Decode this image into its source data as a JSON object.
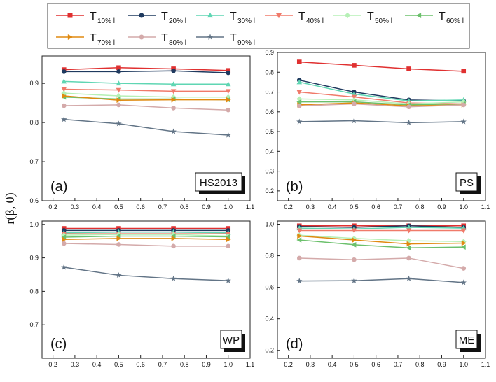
{
  "chart_data": {
    "type": "line",
    "ylabel": "r(β, 0)",
    "xticks": [
      "0.2",
      "0.3",
      "0.4",
      "0.5",
      "0.6",
      "0.7",
      "0.8",
      "0.9",
      "1.0",
      "1.1"
    ],
    "legend": [
      {
        "key": "t10",
        "main": "T",
        "sub": "10% l",
        "color": "#e03030",
        "marker": "square"
      },
      {
        "key": "t20",
        "main": "T",
        "sub": "20% l",
        "color": "#1f3a5f",
        "marker": "circle"
      },
      {
        "key": "t30",
        "main": "T",
        "sub": "30% l",
        "color": "#5fd6b3",
        "marker": "triangle-up"
      },
      {
        "key": "t40",
        "main": "T",
        "sub": "40% l",
        "color": "#f07a6a",
        "marker": "triangle-down"
      },
      {
        "key": "t50",
        "main": "T",
        "sub": "50% l",
        "color": "#b6f0b6",
        "marker": "diamond"
      },
      {
        "key": "t60",
        "main": "T",
        "sub": "60% l",
        "color": "#6cc06c",
        "marker": "triangle-left"
      },
      {
        "key": "t70",
        "main": "T",
        "sub": "70% l",
        "color": "#e08a10",
        "marker": "triangle-right"
      },
      {
        "key": "t80",
        "main": "T",
        "sub": "80% l",
        "color": "#d4aaaa",
        "marker": "circle"
      },
      {
        "key": "t90",
        "main": "T",
        "sub": "90% l",
        "color": "#627486",
        "marker": "star"
      }
    ],
    "panels": [
      {
        "id": "a",
        "letter": "(a)",
        "tag": "HS2013",
        "xlim": [
          0.15,
          1.1
        ],
        "ylim": [
          0.6,
          0.97
        ],
        "yticks": [
          "0.6",
          "0.7",
          "0.8",
          "0.9"
        ],
        "x": [
          0.25,
          0.5,
          0.75,
          1.0
        ],
        "series": [
          {
            "key": "t10",
            "values": [
              0.935,
              0.94,
              0.937,
              0.933
            ]
          },
          {
            "key": "t20",
            "values": [
              0.93,
              0.93,
              0.932,
              0.927
            ]
          },
          {
            "key": "t30",
            "values": [
              0.905,
              0.9,
              0.898,
              0.898
            ]
          },
          {
            "key": "t40",
            "values": [
              0.885,
              0.883,
              0.88,
              0.88
            ]
          },
          {
            "key": "t50",
            "values": [
              0.875,
              0.868,
              0.865,
              0.865
            ]
          },
          {
            "key": "t60",
            "values": [
              0.865,
              0.86,
              0.86,
              0.858
            ]
          },
          {
            "key": "t70",
            "values": [
              0.868,
              0.857,
              0.858,
              0.858
            ]
          },
          {
            "key": "t80",
            "values": [
              0.843,
              0.845,
              0.837,
              0.832
            ]
          },
          {
            "key": "t90",
            "values": [
              0.808,
              0.797,
              0.777,
              0.768
            ]
          }
        ]
      },
      {
        "id": "b",
        "letter": "(b)",
        "tag": "PS",
        "xlim": [
          0.15,
          1.1
        ],
        "ylim": [
          0.15,
          0.9
        ],
        "yticks": [
          "0.2",
          "0.3",
          "0.4",
          "0.5",
          "0.6",
          "0.7",
          "0.8",
          "0.9"
        ],
        "x": [
          0.25,
          0.5,
          0.75,
          1.0
        ],
        "series": [
          {
            "key": "t10",
            "values": [
              0.852,
              0.835,
              0.817,
              0.805
            ]
          },
          {
            "key": "t20",
            "values": [
              0.76,
              0.7,
              0.66,
              0.655
            ]
          },
          {
            "key": "t30",
            "values": [
              0.75,
              0.69,
              0.655,
              0.66
            ]
          },
          {
            "key": "t40",
            "values": [
              0.7,
              0.675,
              0.645,
              0.64
            ]
          },
          {
            "key": "t50",
            "values": [
              0.665,
              0.66,
              0.64,
              0.65
            ]
          },
          {
            "key": "t60",
            "values": [
              0.65,
              0.65,
              0.635,
              0.64
            ]
          },
          {
            "key": "t70",
            "values": [
              0.635,
              0.645,
              0.63,
              0.635
            ]
          },
          {
            "key": "t80",
            "values": [
              0.63,
              0.64,
              0.625,
              0.635
            ]
          },
          {
            "key": "t90",
            "values": [
              0.55,
              0.555,
              0.545,
              0.55
            ]
          }
        ]
      },
      {
        "id": "c",
        "letter": "(c)",
        "tag": "WP",
        "xlim": [
          0.15,
          1.1
        ],
        "ylim": [
          0.6,
          1.01
        ],
        "yticks": [
          "0.7",
          "0.8",
          "0.9",
          "1.0"
        ],
        "x": [
          0.25,
          0.5,
          0.75,
          1.0
        ],
        "series": [
          {
            "key": "t10",
            "values": [
              0.988,
              0.988,
              0.988,
              0.988
            ]
          },
          {
            "key": "t20",
            "values": [
              0.982,
              0.982,
              0.982,
              0.982
            ]
          },
          {
            "key": "t30",
            "values": [
              0.975,
              0.977,
              0.977,
              0.975
            ]
          },
          {
            "key": "t40",
            "values": [
              0.972,
              0.972,
              0.972,
              0.972
            ]
          },
          {
            "key": "t50",
            "values": [
              0.968,
              0.97,
              0.97,
              0.965
            ]
          },
          {
            "key": "t60",
            "values": [
              0.962,
              0.965,
              0.965,
              0.963
            ]
          },
          {
            "key": "t70",
            "values": [
              0.955,
              0.958,
              0.958,
              0.955
            ]
          },
          {
            "key": "t80",
            "values": [
              0.943,
              0.94,
              0.935,
              0.935
            ]
          },
          {
            "key": "t90",
            "values": [
              0.872,
              0.848,
              0.838,
              0.832
            ]
          }
        ]
      },
      {
        "id": "d",
        "letter": "(d)",
        "tag": "ME",
        "xlim": [
          0.15,
          1.1
        ],
        "ylim": [
          0.15,
          1.02
        ],
        "yticks": [
          "0.2",
          "0.4",
          "0.6",
          "0.8",
          "1.0"
        ],
        "x": [
          0.25,
          0.5,
          0.75,
          1.0
        ],
        "series": [
          {
            "key": "t10",
            "values": [
              0.99,
              0.99,
              0.99,
              0.99
            ]
          },
          {
            "key": "t20",
            "values": [
              0.985,
              0.98,
              0.99,
              0.98
            ]
          },
          {
            "key": "t30",
            "values": [
              0.975,
              0.97,
              0.98,
              0.975
            ]
          },
          {
            "key": "t40",
            "values": [
              0.96,
              0.96,
              0.96,
              0.96
            ]
          },
          {
            "key": "t50",
            "values": [
              0.93,
              0.91,
              0.895,
              0.89
            ]
          },
          {
            "key": "t60",
            "values": [
              0.9,
              0.87,
              0.85,
              0.855
            ]
          },
          {
            "key": "t70",
            "values": [
              0.925,
              0.9,
              0.875,
              0.88
            ]
          },
          {
            "key": "t80",
            "values": [
              0.785,
              0.775,
              0.785,
              0.72
            ]
          },
          {
            "key": "t90",
            "values": [
              0.64,
              0.642,
              0.655,
              0.63
            ]
          }
        ]
      }
    ]
  }
}
